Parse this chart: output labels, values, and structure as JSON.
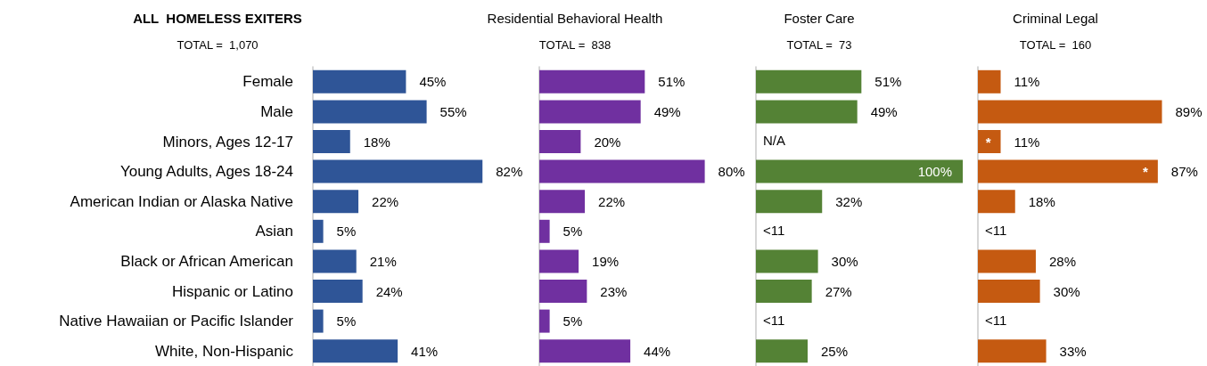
{
  "chart_data": [
    {
      "type": "bar",
      "orientation": "horizontal",
      "title": "ALL  HOMELESS EXITERS",
      "subtitle": "TOTAL =  1,070",
      "categories": [
        "Female",
        "Male",
        "Minors, Ages 12-17",
        "Young Adults, Ages 18-24",
        "American Indian or Alaska Native",
        "Asian",
        "Black or African American",
        "Hispanic or Latino",
        "Native Hawaiian or Pacific Islander",
        "White, Non-Hispanic"
      ],
      "tick_labels": "y",
      "series": [
        {
          "color": "#2f5597",
          "values": [
            45,
            55,
            18,
            82,
            22,
            5,
            21,
            24,
            5,
            41
          ],
          "value_labels": [
            "45%",
            "55%",
            "18%",
            "82%",
            "22%",
            "5%",
            "21%",
            "24%",
            "5%",
            "41%"
          ]
        }
      ]
    },
    {
      "type": "bar",
      "orientation": "horizontal",
      "title": "Residential Behavioral Health",
      "subtitle": "TOTAL =  838",
      "categories": [
        null,
        null,
        null,
        null,
        null,
        null,
        null,
        null,
        null,
        null
      ],
      "tick_labels": false,
      "series": [
        {
          "color": "#7030a0",
          "values": [
            51,
            49,
            20,
            80,
            22,
            5,
            19,
            23,
            5,
            44
          ],
          "value_labels": [
            "51%",
            "49%",
            "20%",
            "80%",
            "22%",
            "5%",
            "19%",
            "23%",
            "5%",
            "44%"
          ]
        }
      ]
    },
    {
      "type": "bar",
      "orientation": "horizontal",
      "title": "Foster Care",
      "subtitle": "TOTAL =  73",
      "categories": [
        null,
        null,
        null,
        null,
        null,
        null,
        null,
        null,
        null,
        null
      ],
      "tick_labels": false,
      "series": [
        {
          "color": "#548235",
          "values": [
            51,
            49,
            null,
            100,
            32,
            null,
            30,
            27,
            null,
            25
          ],
          "value_labels": [
            "51%",
            "49%",
            "N/A",
            "100%",
            "32%",
            "<11",
            "30%",
            "27%",
            "<11",
            "25%"
          ]
        }
      ]
    },
    {
      "type": "bar",
      "orientation": "horizontal",
      "title": "Criminal Legal",
      "subtitle": "TOTAL =  160",
      "categories": [
        null,
        null,
        null,
        null,
        null,
        null,
        null,
        null,
        null,
        null
      ],
      "tick_labels": false,
      "annotations": [
        "*",
        "*"
      ],
      "series": [
        {
          "color": "#c55a11",
          "values": [
            11,
            89,
            11,
            87,
            18,
            null,
            28,
            30,
            null,
            33
          ],
          "value_labels": [
            "11%",
            "89%",
            "11%",
            "87%",
            "18%",
            "<11",
            "28%",
            "30%",
            "<11",
            "33%"
          ]
        }
      ]
    }
  ]
}
